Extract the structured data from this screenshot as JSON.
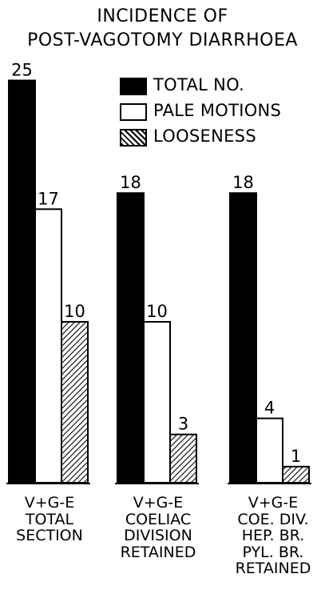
{
  "chart_data": {
    "type": "bar",
    "title_line1": "INCIDENCE OF",
    "title_line2": "POST-VAGOTOMY DIARRHOEA",
    "xlabel": "",
    "ylabel": "",
    "ylim": [
      0,
      25
    ],
    "grid": false,
    "legend_placement": "top-right",
    "categories": [
      "V+G-E TOTAL SECTION",
      "V+G-E COELIAC DIVISION RETAINED",
      "V+G-E COE. DIV. HEP. BR. PYL. BR. RETAINED"
    ],
    "category_label_lines": [
      [
        "V+G-E",
        "TOTAL",
        "SECTION"
      ],
      [
        "V+G-E",
        "COELIAC",
        "DIVISION",
        "RETAINED"
      ],
      [
        "V+G-E",
        "COE. DIV.",
        "HEP. BR.",
        "PYL. BR.",
        "RETAINED"
      ]
    ],
    "series": [
      {
        "name": "TOTAL NO.",
        "values": [
          25,
          18,
          18
        ],
        "style": "solid",
        "color": "#000000"
      },
      {
        "name": "PALE MOTIONS",
        "values": [
          17,
          10,
          4
        ],
        "style": "outline",
        "color": "#ffffff"
      },
      {
        "name": "LOOSENESS",
        "values": [
          10,
          3,
          1
        ],
        "style": "hatched",
        "color": "#000000"
      }
    ]
  }
}
